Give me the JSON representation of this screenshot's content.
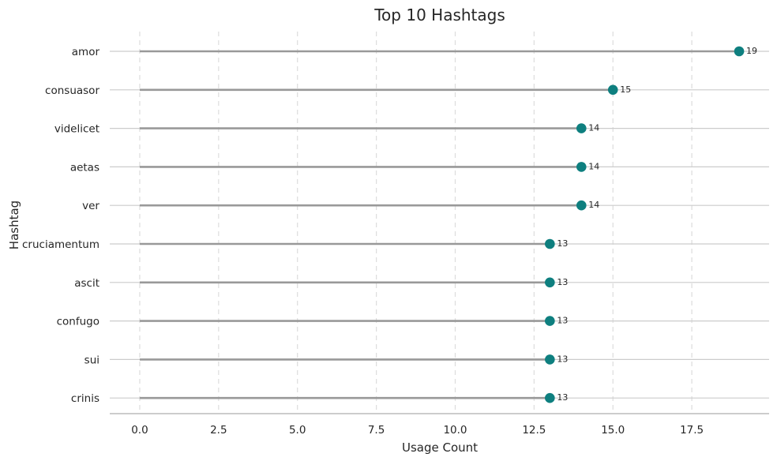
{
  "chart_data": {
    "type": "lollipop",
    "title": "Top 10 Hashtags",
    "xlabel": "Usage Count",
    "ylabel": "Hashtag",
    "categories": [
      "amor",
      "consuasor",
      "videlicet",
      "aetas",
      "ver",
      "cruciamentum",
      "ascit",
      "confugo",
      "sui",
      "crinis"
    ],
    "values": [
      19,
      15,
      14,
      14,
      14,
      13,
      13,
      13,
      13,
      13
    ],
    "xlim": [
      -0.95,
      19.95
    ],
    "xticks": [
      0.0,
      2.5,
      5.0,
      7.5,
      10.0,
      12.5,
      15.0,
      17.5
    ],
    "xtick_labels": [
      "0.0",
      "2.5",
      "5.0",
      "7.5",
      "10.0",
      "12.5",
      "15.0",
      "17.5"
    ],
    "grid": true,
    "colors": {
      "marker": "#0e7f7f",
      "stem": "#999999",
      "hgrid": "#cccccc",
      "vgrid": "#dddddd"
    }
  }
}
